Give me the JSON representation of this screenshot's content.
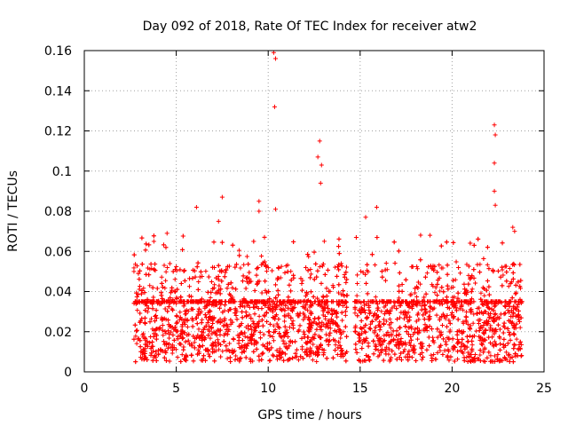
{
  "chart_data": {
    "type": "scatter",
    "title": "Day 092 of 2018, Rate Of TEC Index for receiver atw2",
    "xlabel": "GPS time / hours",
    "ylabel": "ROTI / TECUs",
    "xlim": [
      0,
      25
    ],
    "ylim": [
      0,
      0.16
    ],
    "x_ticks": [
      0,
      5,
      10,
      15,
      20,
      25
    ],
    "x_tick_labels": [
      "0",
      "5",
      "10",
      "15",
      "20",
      "25"
    ],
    "y_ticks": [
      0,
      0.02,
      0.04,
      0.06,
      0.08,
      0.1,
      0.12,
      0.14,
      0.16
    ],
    "y_tick_labels": [
      "0",
      "0.02",
      "0.04",
      "0.06",
      "0.08",
      "0.1",
      "0.12",
      "0.14",
      "0.16"
    ],
    "grid": true,
    "marker": "+",
    "marker_color": "#ff0000",
    "data_gap": [
      14.3,
      14.7
    ],
    "series": [
      {
        "name": "ROTI",
        "notable_points": [
          {
            "x": 2.7,
            "y": 0.05
          },
          {
            "x": 4.5,
            "y": 0.069
          },
          {
            "x": 6.1,
            "y": 0.082
          },
          {
            "x": 7.3,
            "y": 0.075
          },
          {
            "x": 7.5,
            "y": 0.087
          },
          {
            "x": 9.5,
            "y": 0.085
          },
          {
            "x": 9.5,
            "y": 0.08
          },
          {
            "x": 10.3,
            "y": 0.159
          },
          {
            "x": 10.4,
            "y": 0.156
          },
          {
            "x": 10.35,
            "y": 0.132
          },
          {
            "x": 10.4,
            "y": 0.081
          },
          {
            "x": 12.8,
            "y": 0.115
          },
          {
            "x": 12.7,
            "y": 0.107
          },
          {
            "x": 12.9,
            "y": 0.103
          },
          {
            "x": 12.85,
            "y": 0.094
          },
          {
            "x": 15.3,
            "y": 0.077
          },
          {
            "x": 15.9,
            "y": 0.082
          },
          {
            "x": 18.8,
            "y": 0.068
          },
          {
            "x": 22.3,
            "y": 0.123
          },
          {
            "x": 22.35,
            "y": 0.118
          },
          {
            "x": 22.3,
            "y": 0.104
          },
          {
            "x": 22.3,
            "y": 0.09
          },
          {
            "x": 22.35,
            "y": 0.083
          },
          {
            "x": 23.3,
            "y": 0.072
          },
          {
            "x": 23.4,
            "y": 0.07
          }
        ],
        "bulk": {
          "x_range": [
            2.7,
            23.8
          ],
          "typical_min": 0.005,
          "typical_max": 0.035,
          "frequent_peaks": [
            0.045,
            0.065
          ]
        }
      }
    ]
  }
}
